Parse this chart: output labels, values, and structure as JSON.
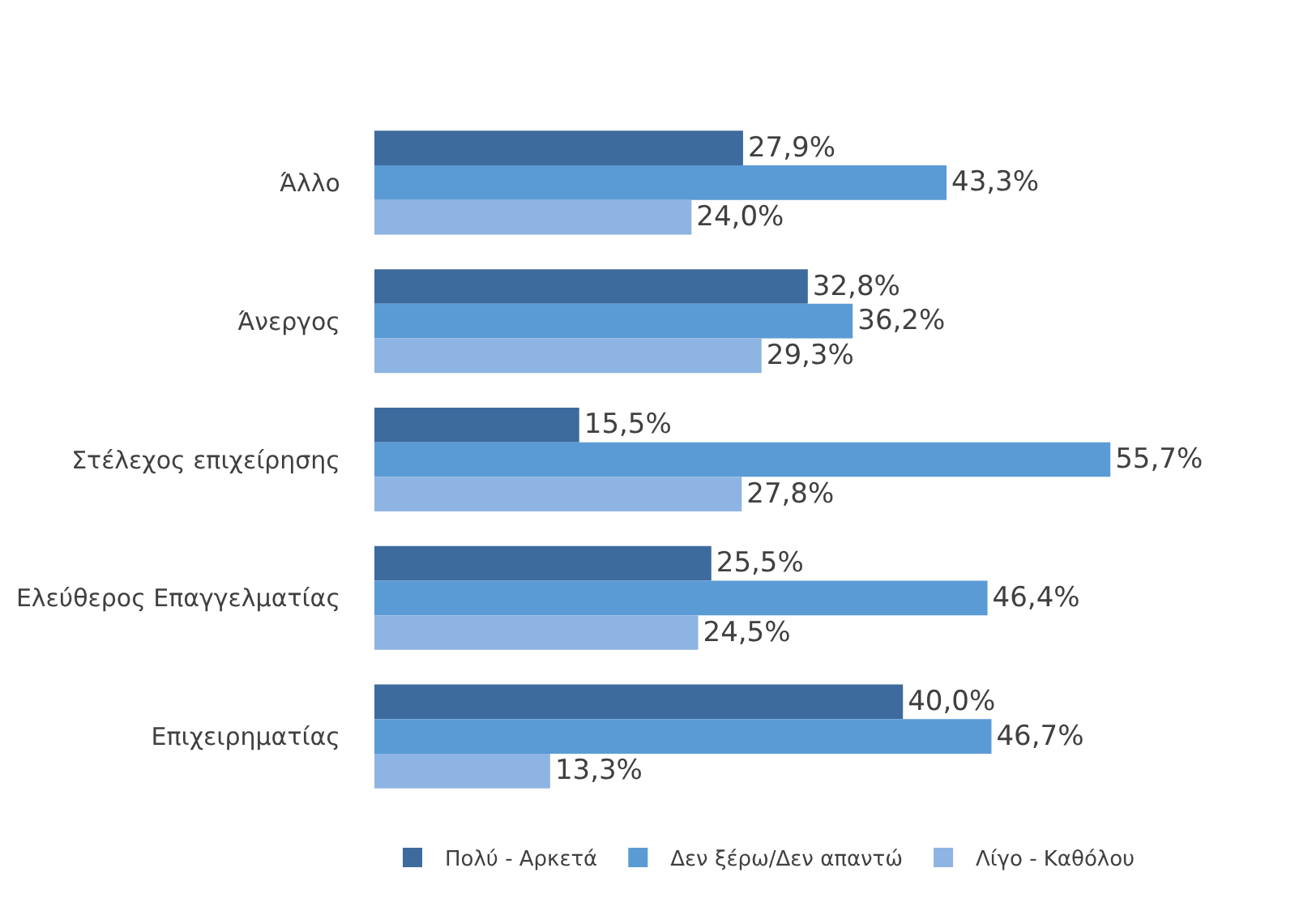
{
  "chart_data": {
    "type": "bar",
    "orientation": "horizontal",
    "categories": [
      "Άλλο",
      "Άνεργος",
      "Στέλεχος επιχείρησης",
      "Ελεύθερος Επαγγελματίας",
      "Επιχειρηματίας"
    ],
    "series": [
      {
        "name": "Πολύ - Αρκετά",
        "color": "#3e6b9e",
        "values": [
          27.9,
          32.8,
          15.5,
          25.5,
          40.0
        ],
        "value_labels": [
          "27,9%",
          "32,8%",
          "15,5%",
          "25,5%",
          "40,0%"
        ]
      },
      {
        "name": "Δεν ξέρω/Δεν απαντώ",
        "color": "#5b9bd5",
        "values": [
          43.3,
          36.2,
          55.7,
          46.4,
          46.7
        ],
        "value_labels": [
          "43,3%",
          "36,2%",
          "55,7%",
          "46,4%",
          "46,7%"
        ]
      },
      {
        "name": "Λίγο - Καθόλου",
        "color": "#8eb4e3",
        "values": [
          24.0,
          29.3,
          27.8,
          24.5,
          13.3
        ],
        "value_labels": [
          "24,0%",
          "29,3%",
          "27,8%",
          "24,5%",
          "13,3%"
        ]
      }
    ],
    "legend": "bottom"
  }
}
